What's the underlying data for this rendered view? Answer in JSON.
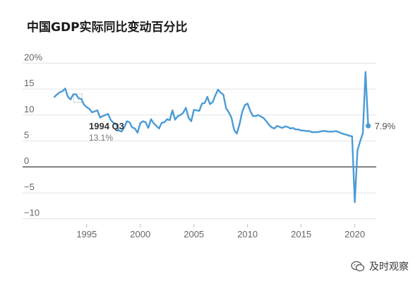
{
  "chart_data": {
    "type": "line",
    "title": "中国GDP实际同比变动百分比",
    "xlabel": "",
    "ylabel": "",
    "xlim": [
      1991,
      2022
    ],
    "ylim": [
      -11,
      21
    ],
    "y_ticks": [
      {
        "value": 20,
        "label": "20%"
      },
      {
        "value": 15,
        "label": "15"
      },
      {
        "value": 10,
        "label": "10"
      },
      {
        "value": 5,
        "label": "5"
      },
      {
        "value": 0,
        "label": "0"
      },
      {
        "value": -5,
        "label": "−5"
      },
      {
        "value": -10,
        "label": "−10"
      }
    ],
    "x_ticks": [
      {
        "value": 1995,
        "label": "1995"
      },
      {
        "value": 2000,
        "label": "2000"
      },
      {
        "value": 2005,
        "label": "2005"
      },
      {
        "value": 2010,
        "label": "2010"
      },
      {
        "value": 2015,
        "label": "2015"
      },
      {
        "value": 2020,
        "label": "2020"
      }
    ],
    "grid": "horizontal",
    "line_color": "#4a9bd6",
    "series": [
      {
        "x": [
          1992.0,
          1992.25,
          1992.5,
          1992.75,
          1993.0,
          1993.25,
          1993.5,
          1993.75,
          1994.0,
          1994.25,
          1994.5,
          1994.75,
          1995.0,
          1995.25,
          1995.5,
          1995.75,
          1996.0,
          1996.25,
          1996.5,
          1996.75,
          1997.0,
          1997.25,
          1997.5,
          1997.75,
          1998.0,
          1998.25,
          1998.5,
          1998.75,
          1999.0,
          1999.25,
          1999.5,
          1999.75,
          2000.0,
          2000.25,
          2000.5,
          2000.75,
          2001.0,
          2001.25,
          2001.5,
          2001.75,
          2002.0,
          2002.25,
          2002.5,
          2002.75,
          2003.0,
          2003.25,
          2003.5,
          2003.75,
          2004.0,
          2004.25,
          2004.5,
          2004.75,
          2005.0,
          2005.25,
          2005.5,
          2005.75,
          2006.0,
          2006.25,
          2006.5,
          2006.75,
          2007.0,
          2007.25,
          2007.5,
          2007.75,
          2008.0,
          2008.25,
          2008.5,
          2008.75,
          2009.0,
          2009.25,
          2009.5,
          2009.75,
          2010.0,
          2010.25,
          2010.5,
          2010.75,
          2011.0,
          2011.25,
          2011.5,
          2011.75,
          2012.0,
          2012.25,
          2012.5,
          2012.75,
          2013.0,
          2013.25,
          2013.5,
          2013.75,
          2014.0,
          2014.25,
          2014.5,
          2014.75,
          2015.0,
          2015.25,
          2015.5,
          2015.75,
          2016.0,
          2016.25,
          2016.5,
          2016.75,
          2017.0,
          2017.25,
          2017.5,
          2017.75,
          2018.0,
          2018.25,
          2018.5,
          2018.75,
          2019.0,
          2019.25,
          2019.5,
          2019.75,
          2020.0,
          2020.25,
          2020.5,
          2020.75,
          2021.0,
          2021.25
        ],
        "y": [
          13.5,
          14.0,
          14.4,
          14.6,
          15.1,
          13.5,
          13.0,
          14.0,
          14.0,
          13.2,
          13.1,
          12.0,
          11.5,
          11.2,
          10.5,
          10.7,
          10.9,
          9.5,
          9.8,
          10.0,
          10.2,
          9.0,
          8.5,
          8.2,
          7.0,
          6.8,
          7.6,
          8.8,
          8.6,
          7.6,
          7.4,
          6.6,
          8.4,
          8.8,
          8.6,
          7.5,
          9.2,
          8.4,
          7.9,
          7.4,
          8.5,
          8.6,
          9.2,
          9.0,
          10.9,
          9.1,
          9.8,
          10.0,
          10.4,
          11.4,
          9.5,
          8.8,
          11.0,
          10.9,
          10.8,
          12.2,
          12.3,
          13.5,
          12.1,
          12.5,
          13.8,
          14.9,
          14.3,
          13.9,
          11.3,
          10.5,
          9.5,
          7.1,
          6.4,
          8.2,
          10.6,
          11.9,
          12.2,
          10.8,
          9.8,
          9.8,
          10.0,
          9.7,
          9.4,
          8.8,
          8.1,
          7.6,
          7.4,
          7.9,
          7.7,
          7.5,
          7.8,
          7.7,
          7.4,
          7.5,
          7.2,
          7.2,
          7.0,
          7.0,
          6.9,
          6.9,
          6.7,
          6.7,
          6.7,
          6.8,
          6.9,
          6.9,
          6.8,
          6.8,
          6.8,
          6.9,
          6.7,
          6.5,
          6.3,
          6.2,
          6.0,
          5.9,
          -6.8,
          3.2,
          4.9,
          6.5,
          18.3,
          7.9
        ]
      }
    ],
    "annotations": [
      {
        "x": 1994.25,
        "y": 13.1,
        "title": "1994 Q3",
        "value": "13.1%"
      },
      {
        "x": 2021.25,
        "y": 7.9,
        "value": "7.9%"
      }
    ]
  },
  "watermark": {
    "text": "及时观察",
    "icon": "wechat-icon"
  }
}
